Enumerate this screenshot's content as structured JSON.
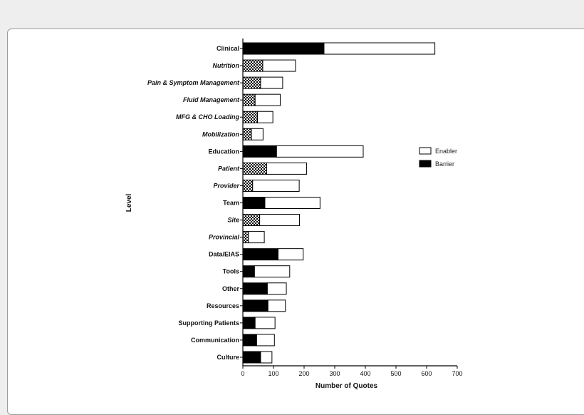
{
  "chart_data": {
    "type": "bar",
    "orientation": "horizontal",
    "stacked": true,
    "xlabel": "Number of Quotes",
    "ylabel": "Level",
    "xlim": [
      0,
      700
    ],
    "xticks": [
      0,
      100,
      200,
      300,
      400,
      500,
      600,
      700
    ],
    "legend_position": "right",
    "categories": [
      {
        "label": "Clinical",
        "italic": false
      },
      {
        "label": "Nutrition",
        "italic": true
      },
      {
        "label": "Pain & Symptom Management",
        "italic": true
      },
      {
        "label": "Fluid Management",
        "italic": true
      },
      {
        "label": "MFG & CHO Loading",
        "italic": true
      },
      {
        "label": "Mobilization",
        "italic": true
      },
      {
        "label": "Education",
        "italic": false
      },
      {
        "label": "Patient",
        "italic": true
      },
      {
        "label": "Provider",
        "italic": true
      },
      {
        "label": "Team",
        "italic": false
      },
      {
        "label": "Site",
        "italic": true
      },
      {
        "label": "Provincial",
        "italic": true
      },
      {
        "label": "Data/EIAS",
        "italic": false
      },
      {
        "label": "Tools",
        "italic": false
      },
      {
        "label": "Other",
        "italic": false
      },
      {
        "label": "Resources",
        "italic": false
      },
      {
        "label": "Supporting Patients",
        "italic": false
      },
      {
        "label": "Communication",
        "italic": false
      },
      {
        "label": "Culture",
        "italic": false
      }
    ],
    "series": [
      {
        "name": "Barrier",
        "values": [
          265,
          65,
          58,
          40,
          48,
          28,
          110,
          78,
          32,
          72,
          55,
          18,
          115,
          38,
          80,
          82,
          40,
          45,
          58
        ]
      },
      {
        "name": "Enabler",
        "values": [
          362,
          107,
          72,
          82,
          50,
          38,
          283,
          130,
          152,
          180,
          130,
          52,
          82,
          115,
          62,
          57,
          65,
          58,
          37
        ]
      }
    ],
    "bar_fills": [
      "solid-black",
      "checkered",
      "checkered",
      "checkered",
      "checkered",
      "checkered",
      "solid-black",
      "checkered",
      "checkered",
      "solid-black",
      "checkered",
      "checkered",
      "solid-black",
      "solid-black",
      "solid-black",
      "solid-black",
      "solid-black",
      "solid-black",
      "solid-black"
    ],
    "colors": {
      "barrier": "#000000",
      "enabler": "#ffffff",
      "outline": "#000000"
    }
  }
}
